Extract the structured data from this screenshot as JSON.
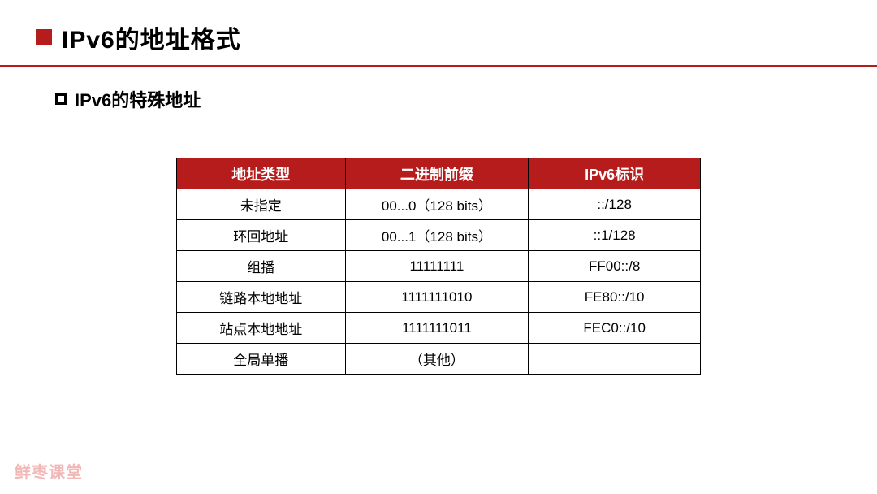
{
  "header": {
    "title": "IPv6的地址格式"
  },
  "sub": {
    "title": "IPv6的特殊地址"
  },
  "table": {
    "header_bg": "#b71c1c",
    "header_fg": "#ffffff",
    "border_color": "#000000",
    "columns": [
      "地址类型",
      "二进制前缀",
      "IPv6标识"
    ],
    "rows": [
      [
        "未指定",
        "00...0（128 bits）",
        "::/128"
      ],
      [
        "环回地址",
        "00...1（128 bits）",
        "::1/128"
      ],
      [
        "组播",
        "11111111",
        "FF00::/8"
      ],
      [
        "链路本地地址",
        "1111111010",
        "FE80::/10"
      ],
      [
        "站点本地地址",
        "1111111011",
        "FEC0::/10"
      ],
      [
        "全局单播",
        "（其他）",
        ""
      ]
    ]
  },
  "watermark": "鲜枣课堂"
}
